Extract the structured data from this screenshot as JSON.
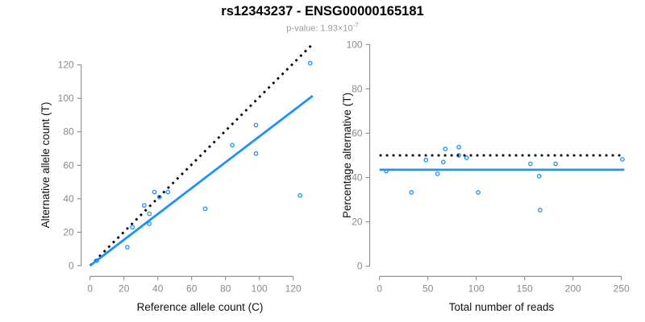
{
  "header": {
    "title": "rs12343237 - ENSG00000165181",
    "pvalue_prefix": "p-value: 1.93×10",
    "pvalue_exponent": "-7"
  },
  "colors": {
    "points": "#1E90FF",
    "fit_line": "#1E90FF",
    "identity_line": "#000000",
    "axis": "#8a8a8a",
    "axis_title": "#111111",
    "title": "#000000",
    "subtitle": "#9b9b9b"
  },
  "chart_data": [
    {
      "type": "scatter",
      "panel": "left",
      "xlabel": "Reference allele count (C)",
      "ylabel": "Alternative allele count (T)",
      "xticks": [
        0,
        20,
        40,
        60,
        80,
        100,
        120
      ],
      "yticks": [
        0,
        20,
        40,
        60,
        80,
        100,
        120
      ],
      "xlim": [
        -5,
        136
      ],
      "ylim": [
        -5,
        133
      ],
      "grid": false,
      "legend": null,
      "points": [
        [
          4,
          3
        ],
        [
          22,
          11
        ],
        [
          25,
          23
        ],
        [
          32,
          36
        ],
        [
          35,
          25
        ],
        [
          35,
          31
        ],
        [
          38,
          44
        ],
        [
          41,
          41
        ],
        [
          46,
          44
        ],
        [
          68,
          34
        ],
        [
          84,
          72
        ],
        [
          98,
          67
        ],
        [
          98,
          84
        ],
        [
          124,
          42
        ],
        [
          130,
          121
        ]
      ],
      "lines": [
        {
          "name": "identity-line",
          "style": "dotted",
          "color": "#000000",
          "x1": 0,
          "y1": 0,
          "x2": 131.5,
          "y2": 132.5
        },
        {
          "name": "fit-line",
          "style": "solid",
          "color": "#1E90FF",
          "x1": 0,
          "y1": 0,
          "x2": 131.5,
          "y2": 101.5
        }
      ],
      "points_on_top": true
    },
    {
      "type": "scatter",
      "panel": "right",
      "xlabel": "Total number of reads",
      "ylabel": "Percentage alternative (T)",
      "xticks": [
        0,
        50,
        100,
        150,
        200,
        250
      ],
      "yticks": [
        0,
        20,
        40,
        60,
        80,
        100
      ],
      "xlim": [
        -10,
        263
      ],
      "ylim": [
        -4,
        104
      ],
      "grid": false,
      "legend": null,
      "points": [
        [
          7,
          42.9
        ],
        [
          33,
          33.3
        ],
        [
          48,
          47.9
        ],
        [
          60,
          41.7
        ],
        [
          66,
          47.0
        ],
        [
          68,
          52.9
        ],
        [
          82,
          53.7
        ],
        [
          82,
          50.0
        ],
        [
          90,
          48.9
        ],
        [
          102,
          33.3
        ],
        [
          156,
          46.2
        ],
        [
          165,
          40.6
        ],
        [
          166,
          25.3
        ],
        [
          182,
          46.2
        ],
        [
          251,
          48.2
        ]
      ],
      "lines": [
        {
          "name": "expected-50pct-line",
          "style": "dotted",
          "color": "#000000",
          "x1": 0,
          "y1": 50,
          "x2": 253,
          "y2": 50
        },
        {
          "name": "mean-percentage-line",
          "style": "solid",
          "color": "#1E90FF",
          "x1": 0,
          "y1": 43.5,
          "x2": 253,
          "y2": 43.5
        }
      ],
      "points_on_top": false
    }
  ]
}
